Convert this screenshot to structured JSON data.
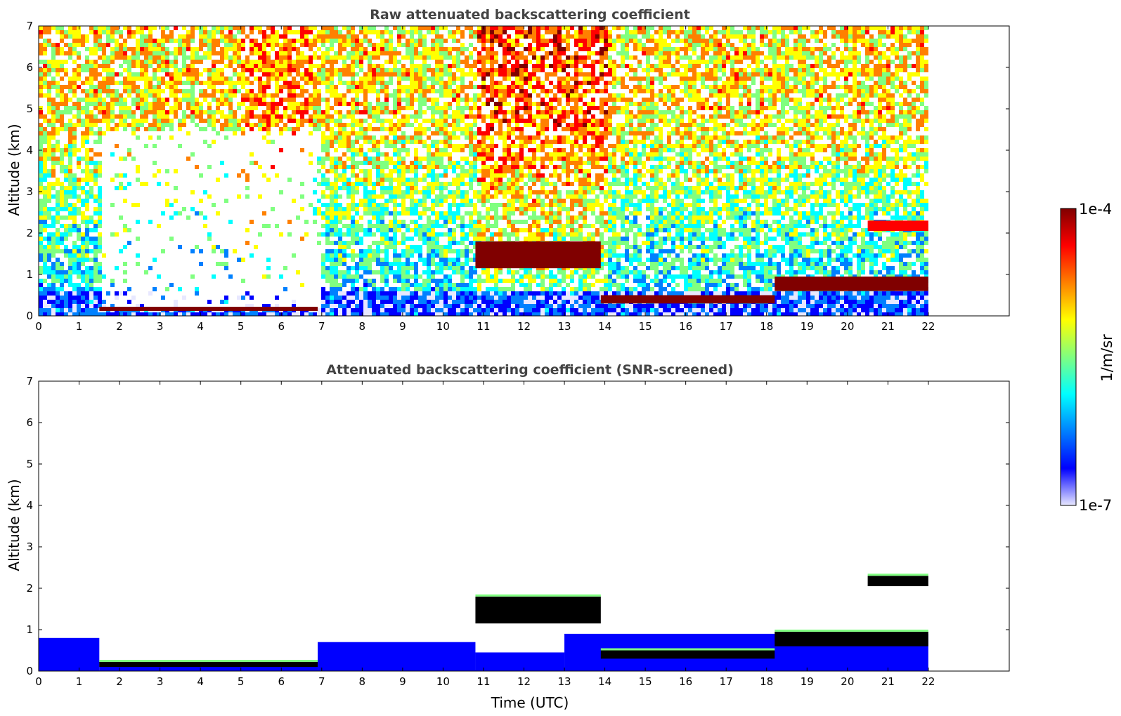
{
  "chart_data": [
    {
      "type": "heatmap",
      "title": "Raw attenuated backscattering coefficient",
      "xlabel": "",
      "ylabel": "Altitude (km)",
      "xlim": [
        0,
        24
      ],
      "ylim": [
        0,
        7
      ],
      "xticks": [
        0,
        1,
        2,
        3,
        4,
        5,
        6,
        7,
        8,
        9,
        10,
        11,
        12,
        13,
        14,
        15,
        16,
        17,
        18,
        19,
        20,
        21,
        22
      ],
      "yticks": [
        0,
        1,
        2,
        3,
        4,
        5,
        6,
        7
      ],
      "data_end_time": 22,
      "noise": true,
      "clear_gap": [
        1.5,
        6.9
      ],
      "cloud_layers": [
        {
          "time": [
            1.5,
            6.9
          ],
          "alt": [
            0.12,
            0.22
          ],
          "level": 1.0
        },
        {
          "time": [
            10.8,
            13.9
          ],
          "alt": [
            1.15,
            1.8
          ],
          "level": 0.97
        },
        {
          "time": [
            13.9,
            18.2
          ],
          "alt": [
            0.3,
            0.5
          ],
          "level": 0.95
        },
        {
          "time": [
            18.2,
            22.0
          ],
          "alt": [
            0.6,
            0.95
          ],
          "level": 0.95
        },
        {
          "time": [
            20.5,
            22.0
          ],
          "alt": [
            2.05,
            2.3
          ],
          "level": 0.92
        }
      ]
    },
    {
      "type": "heatmap",
      "title": "Attenuated backscattering coefficient (SNR-screened)",
      "xlabel": "Time (UTC)",
      "ylabel": "Altitude (km)",
      "xlim": [
        0,
        24
      ],
      "ylim": [
        0,
        7
      ],
      "xticks": [
        0,
        1,
        2,
        3,
        4,
        5,
        6,
        7,
        8,
        9,
        10,
        11,
        12,
        13,
        14,
        15,
        16,
        17,
        18,
        19,
        20,
        21,
        22
      ],
      "yticks": [
        0,
        1,
        2,
        3,
        4,
        5,
        6,
        7
      ],
      "data_end_time": 22,
      "noise": false,
      "cloud_layers": [
        {
          "time": [
            1.5,
            6.9
          ],
          "alt": [
            0.1,
            0.22
          ],
          "level": 1.0
        },
        {
          "time": [
            10.8,
            13.9
          ],
          "alt": [
            1.15,
            1.8
          ],
          "level": 1.0
        },
        {
          "time": [
            13.9,
            18.2
          ],
          "alt": [
            0.3,
            0.5
          ],
          "level": 1.0
        },
        {
          "time": [
            18.2,
            22.0
          ],
          "alt": [
            0.6,
            0.95
          ],
          "level": 1.0
        },
        {
          "time": [
            20.5,
            22.0
          ],
          "alt": [
            2.05,
            2.3
          ],
          "level": 1.0
        }
      ]
    }
  ],
  "colorbar": {
    "label": "1/m/sr",
    "max_label": "1e-4",
    "min_label": "1e-7",
    "colormap": "jet",
    "colors": [
      "#e8e8ff",
      "#0000ff",
      "#0080ff",
      "#00ffff",
      "#80ff80",
      "#ffff00",
      "#ff8000",
      "#ff0000",
      "#800000"
    ]
  }
}
